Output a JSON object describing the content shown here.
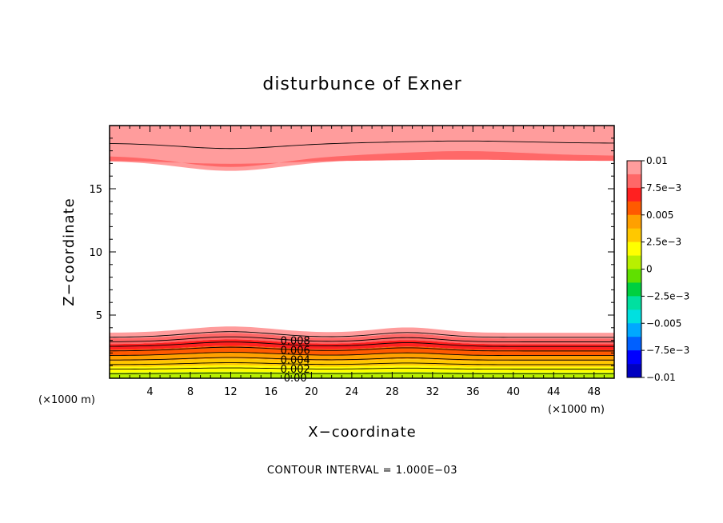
{
  "chart_data": {
    "type": "heatmap",
    "title": "disturbunce of Exner",
    "xlabel": "X−coordinate",
    "ylabel": "Z−coordinate",
    "x_unit": "(×1000 m)",
    "z_unit": "(×1000 m)",
    "xlim": [
      0,
      50
    ],
    "ylim": [
      0,
      20
    ],
    "x_ticks": [
      4,
      8,
      12,
      16,
      20,
      24,
      28,
      32,
      36,
      40,
      44,
      48
    ],
    "y_ticks": [
      5,
      10,
      15
    ],
    "contour_interval_label": "CONTOUR INTERVAL = 1.000E−03",
    "contour_labels": [
      "0.008",
      "0.006",
      "0.004",
      "0.002",
      "0.00"
    ],
    "colorbar": {
      "min": -0.01,
      "max": 0.01,
      "step": 0.00125,
      "tick_labels": [
        "0.01",
        "7.5e−3",
        "0.005",
        "2.5e−3",
        "0",
        "−2.5e−3",
        "−0.005",
        "−7.5e−3",
        "−0.01"
      ],
      "colors_top_to_bottom": [
        "#ff9c9c",
        "#ff6868",
        "#ff2020",
        "#ff5a00",
        "#ffa000",
        "#ffc800",
        "#ffff00",
        "#b8f000",
        "#60e000",
        "#00d040",
        "#00e0a0",
        "#00e0e0",
        "#00a8ff",
        "#0060ff",
        "#0000ff",
        "#0000c0"
      ]
    },
    "field_description_values": {
      "top_layer_z_range": [
        16.5,
        20
      ],
      "bottom_layer_z_range": [
        0,
        4
      ],
      "max_value": 0.01,
      "min_value_shown": 0.0
    }
  }
}
